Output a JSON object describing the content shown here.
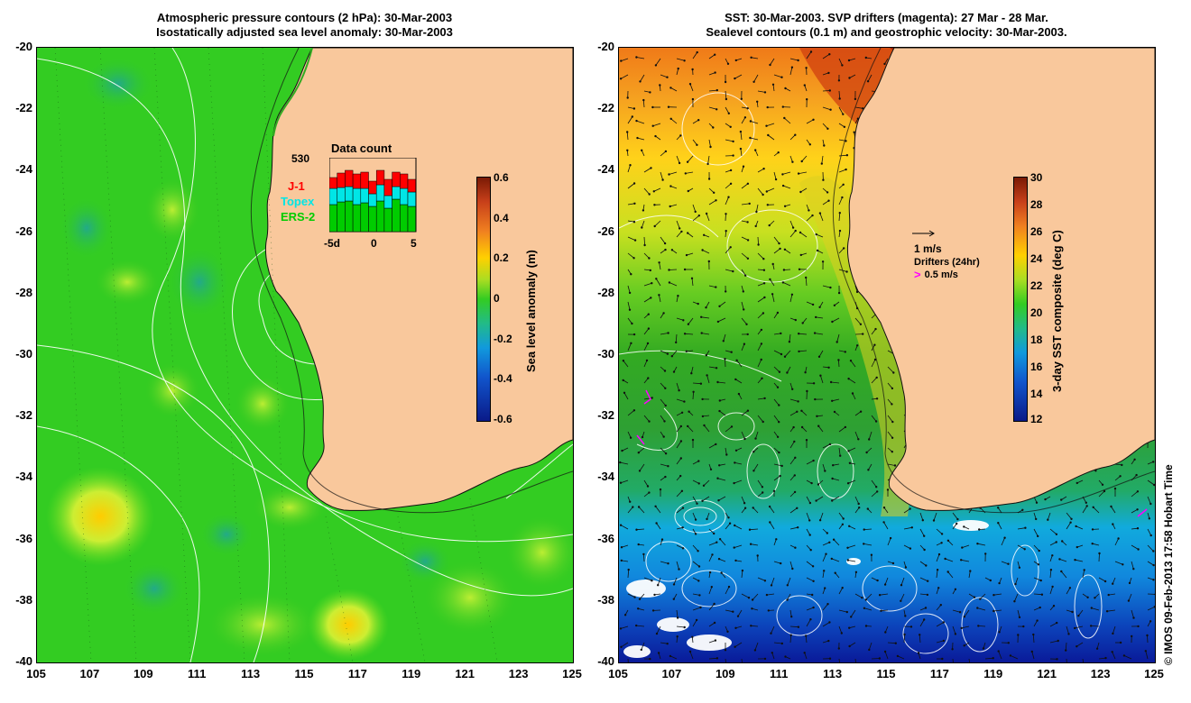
{
  "left_panel": {
    "title_line1": "Atmospheric pressure contours (2 hPa): 30-Mar-2003",
    "title_line2": "Isostatically adjusted sea level anomaly: 30-Mar-2003",
    "lat_labels": [
      "-20",
      "-22",
      "-24",
      "-26",
      "-28",
      "-30",
      "-32",
      "-34",
      "-36",
      "-38",
      "-40"
    ],
    "lon_labels": [
      "105",
      "107",
      "109",
      "111",
      "113",
      "115",
      "117",
      "119",
      "121",
      "123",
      "125"
    ],
    "colorbar": {
      "label": "Sea level anomaly (m)",
      "ticks": [
        "0.6",
        "0.4",
        "0.2",
        "0",
        "-0.2",
        "-0.4",
        "-0.6"
      ]
    },
    "data_count": {
      "title": "Data count",
      "max_label": "530",
      "legend": [
        {
          "name": "J-1",
          "color": "#ff0000"
        },
        {
          "name": "Topex",
          "color": "#00e6e6"
        },
        {
          "name": "ERS-2",
          "color": "#00cc00"
        }
      ],
      "x_labels": [
        "-5d",
        "0",
        "5"
      ]
    }
  },
  "right_panel": {
    "title_line1": "SST: 30-Mar-2003. SVP drifters (magenta): 27 Mar - 28 Mar.",
    "title_line2": "Sealevel contours (0.1 m) and geostrophic velocity: 30-Mar-2003.",
    "lat_labels": [
      "-20",
      "-22",
      "-24",
      "-26",
      "-28",
      "-30",
      "-32",
      "-34",
      "-36",
      "-38",
      "-40"
    ],
    "lon_labels": [
      "105",
      "107",
      "109",
      "111",
      "113",
      "115",
      "117",
      "119",
      "121",
      "123",
      "125"
    ],
    "colorbar": {
      "label": "3-day SST composite (deg C)",
      "ticks": [
        "30",
        "28",
        "26",
        "24",
        "22",
        "20",
        "18",
        "16",
        "14",
        "12"
      ]
    },
    "velocity_legend": "1 m/s",
    "drifters_title": "Drifters (24hr)",
    "drifters_speed": "0.5 m/s"
  },
  "credit": "© IMOS 09-Feb-2013 17:58 Hobart Time",
  "colors": {
    "land": "#f9c89c",
    "ocean_left": "#33cc22",
    "drifter": "#ff00ff"
  }
}
